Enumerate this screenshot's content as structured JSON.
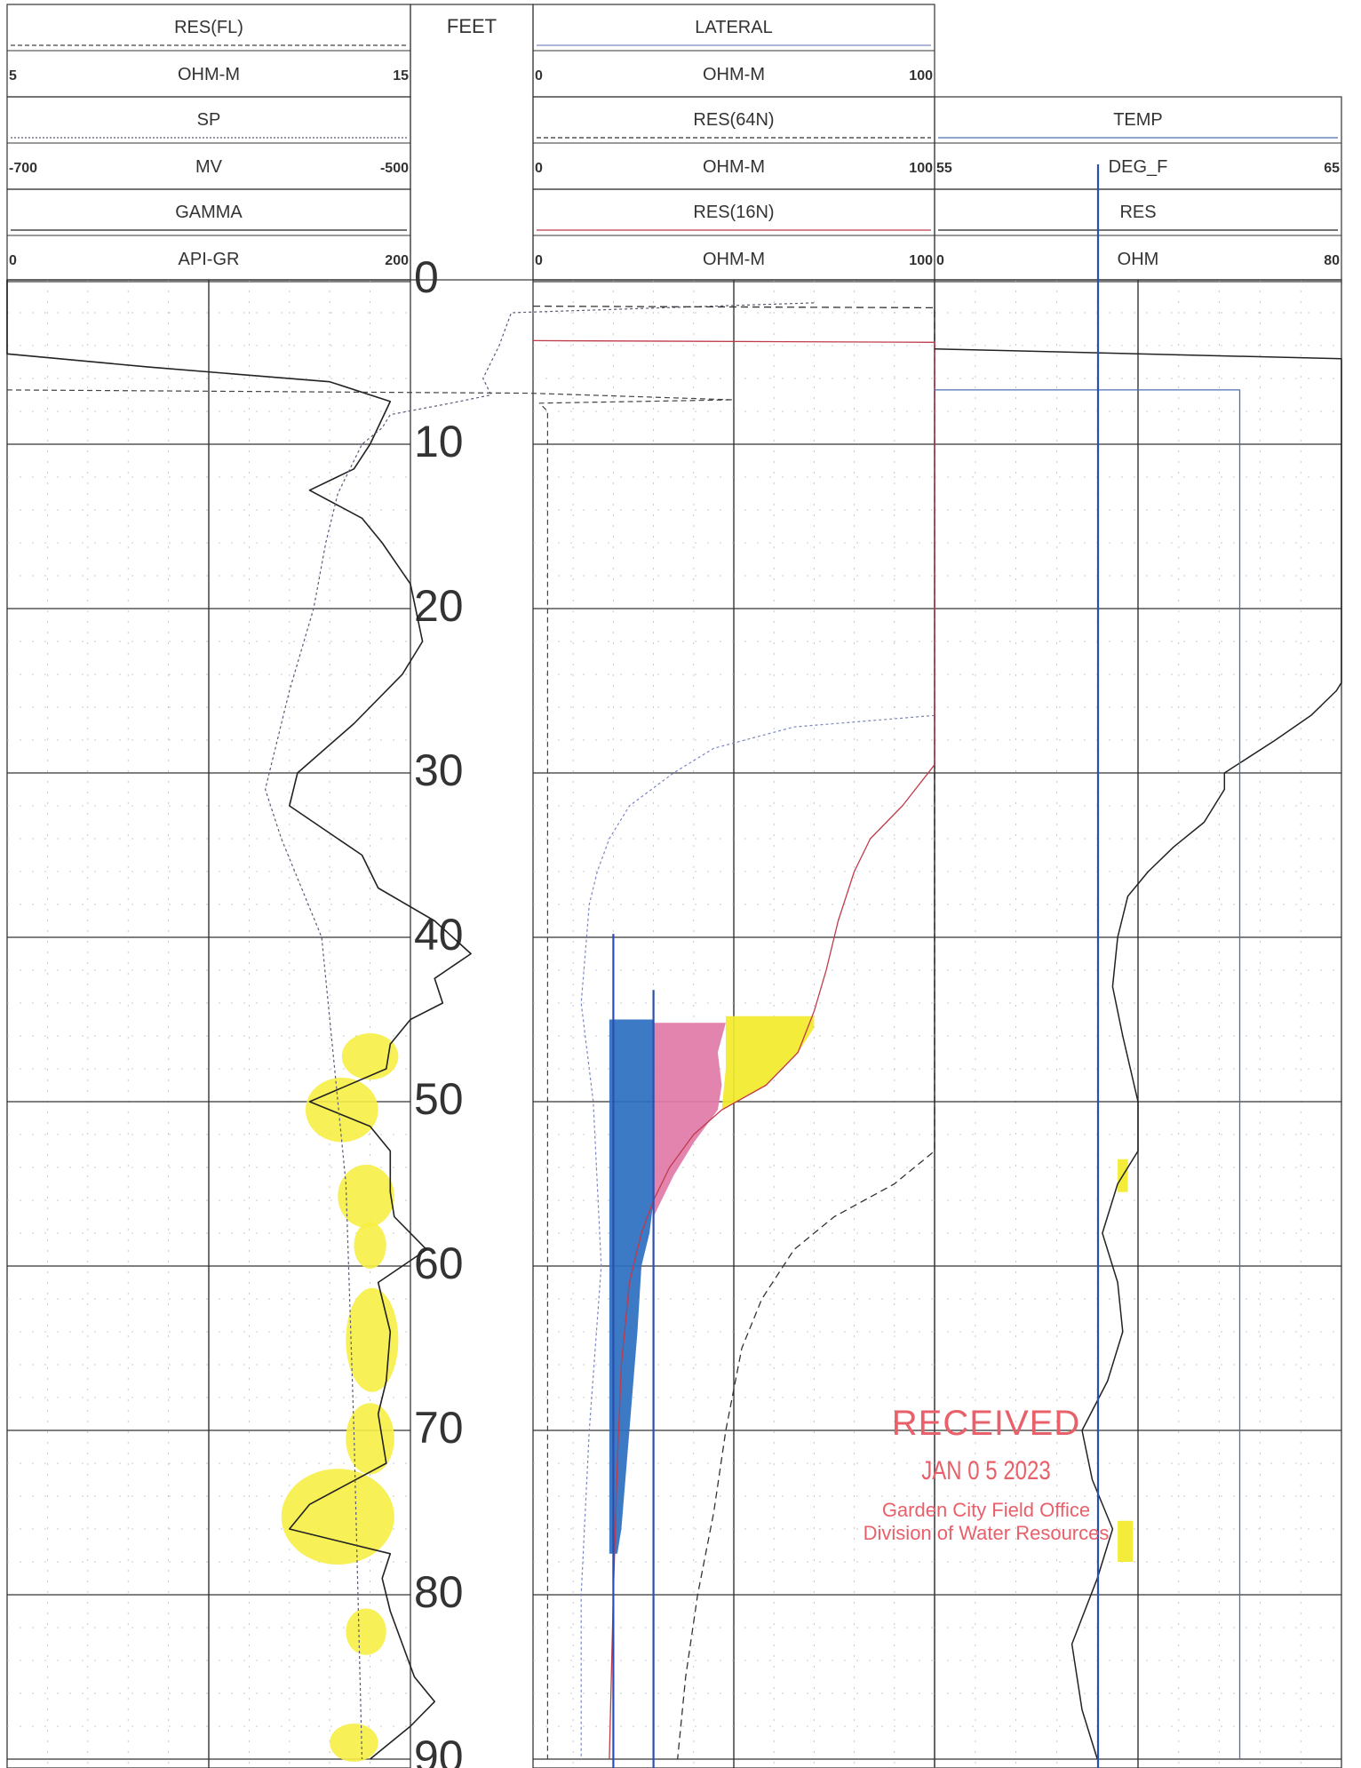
{
  "chart_data": {
    "type": "well-log",
    "depth_header": "FEET",
    "depth_ticks": [
      "0",
      "10",
      "20",
      "30",
      "40",
      "50",
      "60",
      "70",
      "80",
      "90"
    ],
    "depth_range": [
      0,
      90
    ],
    "tracks": [
      {
        "name": "track-1",
        "headers": [
          {
            "name": "RES(FL)",
            "unit": "OHM-M",
            "min": "5",
            "max": "15",
            "color": "#444444",
            "style": "dashed"
          },
          {
            "name": "SP",
            "unit": "MV",
            "min": "-700",
            "max": "-500",
            "color": "#5a5a78",
            "style": "dotted"
          },
          {
            "name": "GAMMA",
            "unit": "API-GR",
            "min": "0",
            "max": "200",
            "color": "#222222",
            "style": "solid"
          }
        ],
        "series": [
          {
            "name": "GAMMA",
            "color": "#222222",
            "dash": "",
            "width": 1.6,
            "points": [
              [
                0,
                0
              ],
              [
                4.5,
                0
              ],
              [
                5.3,
                35
              ],
              [
                6.2,
                80
              ],
              [
                7.4,
                95
              ],
              [
                10,
                90
              ],
              [
                11.5,
                86
              ],
              [
                12.8,
                75
              ],
              [
                14.5,
                88
              ],
              [
                16,
                93
              ],
              [
                18.5,
                100
              ],
              [
                22,
                103
              ],
              [
                24,
                98
              ],
              [
                27,
                86
              ],
              [
                30,
                72
              ],
              [
                32,
                70
              ],
              [
                35,
                88
              ],
              [
                37,
                92
              ],
              [
                39,
                106
              ],
              [
                41,
                115
              ],
              [
                42.5,
                106
              ],
              [
                44,
                108
              ],
              [
                45,
                100
              ],
              [
                46.5,
                95
              ],
              [
                48,
                94
              ],
              [
                50,
                75
              ],
              [
                51.5,
                90
              ],
              [
                53,
                95
              ],
              [
                55.5,
                95
              ],
              [
                57,
                96
              ],
              [
                59,
                104
              ],
              [
                61,
                92
              ],
              [
                64,
                95
              ],
              [
                67,
                94
              ],
              [
                69,
                92
              ],
              [
                72,
                94
              ],
              [
                74.5,
                75
              ],
              [
                76,
                70
              ],
              [
                77.5,
                95
              ],
              [
                79,
                93
              ],
              [
                81,
                95
              ],
              [
                83,
                98
              ],
              [
                85,
                101
              ],
              [
                86.5,
                106
              ],
              [
                88,
                100
              ],
              [
                90,
                90
              ]
            ]
          },
          {
            "name": "SP",
            "color": "#5a5a78",
            "dash": "3 3",
            "width": 1.2,
            "points": [
              [
                1.4,
                200
              ],
              [
                2,
                125
              ],
              [
                4,
                122
              ],
              [
                6,
                118
              ],
              [
                7,
                120
              ],
              [
                7.5,
                110
              ],
              [
                8.2,
                95
              ],
              [
                9,
                93
              ],
              [
                10,
                88
              ],
              [
                13,
                82
              ],
              [
                16,
                79
              ],
              [
                20,
                76
              ],
              [
                25,
                70
              ],
              [
                30,
                65
              ],
              [
                31,
                64
              ],
              [
                34,
                68
              ],
              [
                40,
                78
              ],
              [
                45,
                80
              ],
              [
                55,
                84
              ],
              [
                70,
                86
              ],
              [
                90,
                88
              ]
            ]
          },
          {
            "name": "RES(FL)",
            "color": "#444444",
            "dash": "6 4",
            "width": 1.2,
            "points": [
              [
                6.7,
                0
              ],
              [
                6.9,
                130
              ],
              [
                7.3,
                180
              ],
              [
                7.5,
                132
              ],
              [
                8,
                134
              ],
              [
                90,
                134
              ]
            ]
          }
        ]
      },
      {
        "name": "track-2",
        "headers": [
          {
            "name": "LATERAL",
            "unit": "OHM-M",
            "min": "0",
            "max": "100",
            "color": "#7a86c0",
            "style": "solid"
          },
          {
            "name": "RES(64N)",
            "unit": "OHM-M",
            "min": "0",
            "max": "100",
            "color": "#333333",
            "style": "dashed"
          },
          {
            "name": "RES(16N)",
            "unit": "OHM-M",
            "min": "0",
            "max": "100",
            "color": "#c03a4a",
            "style": "solid"
          }
        ],
        "series": [
          {
            "name": "LATERAL",
            "color": "#7a86c0",
            "dash": "3 3",
            "width": 1.2,
            "points": [
              [
                26.5,
                100
              ],
              [
                27.2,
                65
              ],
              [
                28.5,
                45
              ],
              [
                30,
                35
              ],
              [
                32,
                24
              ],
              [
                34,
                19
              ],
              [
                36,
                16
              ],
              [
                38,
                14
              ],
              [
                41,
                13
              ],
              [
                44,
                12
              ],
              [
                50,
                15
              ],
              [
                60,
                17
              ],
              [
                70,
                14
              ],
              [
                80,
                12
              ],
              [
                90,
                12
              ]
            ]
          },
          {
            "name": "RES(64N)",
            "color": "#333333",
            "dash": "8 5",
            "width": 1.3,
            "points": [
              [
                1.6,
                0
              ],
              [
                1.7,
                100
              ],
              [
                53,
                100
              ],
              [
                55,
                90
              ],
              [
                57,
                75
              ],
              [
                59,
                65
              ],
              [
                62,
                57
              ],
              [
                65,
                52
              ],
              [
                70,
                48
              ],
              [
                75,
                45
              ],
              [
                80,
                41
              ],
              [
                85,
                38
              ],
              [
                90,
                36
              ]
            ]
          },
          {
            "name": "RES(16N)",
            "color": "#c03a4a",
            "dash": "",
            "width": 1.3,
            "points": [
              [
                3.7,
                0
              ],
              [
                3.8,
                100
              ],
              [
                29.5,
                100
              ],
              [
                32,
                92
              ],
              [
                34,
                84
              ],
              [
                36,
                80
              ],
              [
                39,
                76
              ],
              [
                42,
                73
              ],
              [
                44.5,
                70
              ],
              [
                47,
                66
              ],
              [
                49,
                58
              ],
              [
                50.5,
                47
              ],
              [
                52,
                40
              ],
              [
                54,
                34
              ],
              [
                56,
                30
              ],
              [
                58,
                27
              ],
              [
                61,
                24
              ],
              [
                66,
                22
              ],
              [
                72,
                21
              ],
              [
                80,
                20
              ],
              [
                90,
                19
              ]
            ]
          }
        ],
        "fills": [
          {
            "color": "#e07aa6",
            "points": [
              [
                45.2,
                30
              ],
              [
                45.2,
                48
              ],
              [
                47,
                46
              ],
              [
                49,
                47
              ],
              [
                50.5,
                46
              ],
              [
                52.5,
                40
              ],
              [
                54.5,
                35
              ],
              [
                57,
                30
              ]
            ]
          },
          {
            "color": "#f3ea2a",
            "points": [
              [
                44.8,
                48
              ],
              [
                44.8,
                70
              ],
              [
                45.5,
                70
              ],
              [
                47,
                66
              ],
              [
                49,
                58
              ],
              [
                50.5,
                47
              ],
              [
                48,
                48
              ],
              [
                46,
                48
              ]
            ]
          },
          {
            "color": "#2b6fc0",
            "points": [
              [
                45,
                19
              ],
              [
                45,
                30
              ],
              [
                56,
                30
              ],
              [
                58,
                29
              ],
              [
                60,
                27
              ],
              [
                64,
                26
              ],
              [
                70,
                24
              ],
              [
                76,
                22
              ],
              [
                77.5,
                21
              ],
              [
                77.5,
                19
              ],
              [
                70,
                19
              ],
              [
                60,
                19
              ]
            ]
          }
        ],
        "markers": [
          {
            "color": "#2b4fb0",
            "x": 20,
            "from": 39.8,
            "to": 90
          },
          {
            "color": "#2b4fb0",
            "x": 30,
            "from": 43.2,
            "to": 90
          }
        ]
      },
      {
        "name": "track-3",
        "headers": [
          {
            "name": "TEMP",
            "unit": "DEG_F",
            "min": "55",
            "max": "65",
            "color": "#4a70b0",
            "style": "solid"
          },
          {
            "name": "RES",
            "unit": "OHM",
            "min": "0",
            "max": "80",
            "color": "#222222",
            "style": "solid"
          }
        ],
        "series": [
          {
            "name": "RES",
            "color": "#222222",
            "dash": "",
            "width": 1.5,
            "points": [
              [
                4.2,
                0
              ],
              [
                4.8,
                80
              ],
              [
                24.5,
                80
              ],
              [
                25,
                79
              ],
              [
                26.5,
                74
              ],
              [
                28,
                67
              ],
              [
                30,
                57
              ],
              [
                31,
                57
              ],
              [
                33,
                53
              ],
              [
                34.5,
                47
              ],
              [
                36,
                42
              ],
              [
                37.5,
                38
              ],
              [
                40,
                36
              ],
              [
                43,
                35
              ],
              [
                46,
                37
              ],
              [
                50,
                40
              ],
              [
                53,
                40
              ],
              [
                55,
                36
              ],
              [
                58,
                33
              ],
              [
                61,
                36
              ],
              [
                64,
                37
              ],
              [
                67,
                34
              ],
              [
                70,
                29
              ],
              [
                73,
                31
              ],
              [
                76,
                35
              ],
              [
                79,
                32
              ],
              [
                83,
                27
              ],
              [
                87,
                29
              ],
              [
                90,
                32
              ]
            ]
          },
          {
            "name": "TEMP",
            "color": "#4a70b0",
            "dash": "",
            "width": 1.3,
            "points": [
              [
                6.7,
                55
              ],
              [
                6.7,
                62.5
              ],
              [
                90,
                62.5
              ]
            ]
          }
        ],
        "fills": [
          {
            "color": "#f3ea2a",
            "points": [
              [
                53.5,
                36
              ],
              [
                53.5,
                38
              ],
              [
                55.5,
                38
              ],
              [
                55.5,
                36
              ]
            ]
          },
          {
            "color": "#f3ea2a",
            "points": [
              [
                75.5,
                36
              ],
              [
                75.5,
                39
              ],
              [
                78,
                39
              ],
              [
                78,
                36
              ]
            ]
          }
        ],
        "markers": [
          {
            "color": "#2b4fb0",
            "x": 40,
            "from": -6.8,
            "to": 90
          }
        ]
      }
    ],
    "highlights_track1": [
      {
        "from": 46,
        "to": 48.5,
        "x0": 83,
        "x1": 97
      },
      {
        "from": 48.7,
        "to": 52.3,
        "x0": 74,
        "x1": 92
      },
      {
        "from": 54,
        "to": 57.5,
        "x0": 82,
        "x1": 96
      },
      {
        "from": 57.5,
        "to": 60,
        "x0": 86,
        "x1": 94
      },
      {
        "from": 61.5,
        "to": 67.5,
        "x0": 84,
        "x1": 97
      },
      {
        "from": 68.5,
        "to": 72.5,
        "x0": 84,
        "x1": 96
      },
      {
        "from": 72.5,
        "to": 78,
        "x0": 68,
        "x1": 96
      },
      {
        "from": 81,
        "to": 83.5,
        "x0": 84,
        "x1": 94
      },
      {
        "from": 88,
        "to": 90,
        "x0": 80,
        "x1": 92
      }
    ]
  },
  "stamp": {
    "line1": "RECEIVED",
    "line2": "JAN 0 5 2023",
    "line3": "Garden City Field Office",
    "line4": "Division of Water Resources"
  }
}
